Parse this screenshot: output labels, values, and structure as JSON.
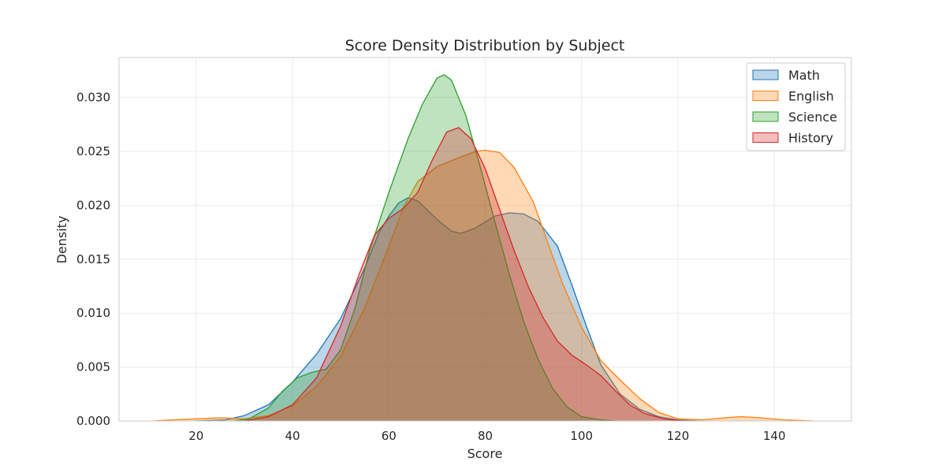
{
  "chart_data": {
    "type": "area",
    "title": "Score Density Distribution by Subject",
    "xlabel": "Score",
    "ylabel": "Density",
    "xlim": [
      4,
      156
    ],
    "ylim": [
      0,
      0.0337
    ],
    "x_ticks": [
      20,
      40,
      60,
      80,
      100,
      120,
      140
    ],
    "x_tick_labels": [
      "20",
      "40",
      "60",
      "80",
      "100",
      "120",
      "140"
    ],
    "y_ticks": [
      0,
      0.005,
      0.01,
      0.015,
      0.02,
      0.025,
      0.03
    ],
    "y_tick_labels": [
      "0.000",
      "0.005",
      "0.010",
      "0.015",
      "0.020",
      "0.025",
      "0.030"
    ],
    "grid": true,
    "legend_position": "top-right",
    "series": [
      {
        "name": "Math",
        "color": "#1f77b4",
        "points": [
          [
            20,
            0
          ],
          [
            26,
            0.0001
          ],
          [
            30,
            0.0005
          ],
          [
            35,
            0.0015
          ],
          [
            40,
            0.0036
          ],
          [
            45,
            0.0062
          ],
          [
            50,
            0.0095
          ],
          [
            55,
            0.0142
          ],
          [
            58,
            0.0175
          ],
          [
            60,
            0.019
          ],
          [
            62,
            0.0202
          ],
          [
            64,
            0.0207
          ],
          [
            66,
            0.0204
          ],
          [
            70,
            0.0187
          ],
          [
            73,
            0.0176
          ],
          [
            75,
            0.0174
          ],
          [
            78,
            0.0179
          ],
          [
            82,
            0.019
          ],
          [
            85,
            0.0193
          ],
          [
            88,
            0.0192
          ],
          [
            91,
            0.0185
          ],
          [
            95,
            0.0162
          ],
          [
            98,
            0.0126
          ],
          [
            101,
            0.0088
          ],
          [
            104,
            0.0052
          ],
          [
            108,
            0.0025
          ],
          [
            112,
            0.0011
          ],
          [
            116,
            0.0004
          ],
          [
            120,
            0.0001
          ],
          [
            124,
            0
          ]
        ]
      },
      {
        "name": "English",
        "color": "#ff7f0e",
        "points": [
          [
            11,
            0
          ],
          [
            15,
            0.0001
          ],
          [
            20,
            0.0002
          ],
          [
            25,
            0.0003
          ],
          [
            30,
            0.0002
          ],
          [
            35,
            0.0005
          ],
          [
            40,
            0.0014
          ],
          [
            45,
            0.0032
          ],
          [
            50,
            0.006
          ],
          [
            55,
            0.0105
          ],
          [
            60,
            0.0162
          ],
          [
            63,
            0.0198
          ],
          [
            66,
            0.0222
          ],
          [
            70,
            0.0236
          ],
          [
            75,
            0.0245
          ],
          [
            78,
            0.025
          ],
          [
            80,
            0.0251
          ],
          [
            83,
            0.0249
          ],
          [
            86,
            0.0235
          ],
          [
            90,
            0.0203
          ],
          [
            93,
            0.0165
          ],
          [
            96,
            0.0128
          ],
          [
            100,
            0.0087
          ],
          [
            104,
            0.0056
          ],
          [
            108,
            0.0038
          ],
          [
            112,
            0.0021
          ],
          [
            116,
            0.0008
          ],
          [
            120,
            0.0002
          ],
          [
            125,
            0.0001
          ],
          [
            130,
            0.0003
          ],
          [
            133,
            0.0004
          ],
          [
            137,
            0.0003
          ],
          [
            142,
            0.0001
          ],
          [
            148,
            0
          ]
        ]
      },
      {
        "name": "Science",
        "color": "#2ca02c",
        "points": [
          [
            28,
            0
          ],
          [
            31,
            0.0002
          ],
          [
            35,
            0.0012
          ],
          [
            38,
            0.0028
          ],
          [
            41,
            0.004
          ],
          [
            44,
            0.0045
          ],
          [
            47,
            0.0048
          ],
          [
            50,
            0.0066
          ],
          [
            53,
            0.0105
          ],
          [
            56,
            0.0158
          ],
          [
            60,
            0.0212
          ],
          [
            64,
            0.0262
          ],
          [
            67,
            0.0294
          ],
          [
            70,
            0.0318
          ],
          [
            71.5,
            0.0321
          ],
          [
            73,
            0.0316
          ],
          [
            76,
            0.0283
          ],
          [
            79,
            0.0235
          ],
          [
            82,
            0.0185
          ],
          [
            85,
            0.0136
          ],
          [
            88,
            0.0092
          ],
          [
            91,
            0.0057
          ],
          [
            94,
            0.003
          ],
          [
            97,
            0.0013
          ],
          [
            100,
            0.0004
          ],
          [
            104,
            0.0001
          ],
          [
            107,
            0
          ]
        ]
      },
      {
        "name": "History",
        "color": "#d62728",
        "points": [
          [
            30,
            0
          ],
          [
            35,
            0.0004
          ],
          [
            40,
            0.0015
          ],
          [
            45,
            0.004
          ],
          [
            50,
            0.0088
          ],
          [
            54,
            0.0138
          ],
          [
            57,
            0.0172
          ],
          [
            60,
            0.0188
          ],
          [
            63,
            0.0197
          ],
          [
            66,
            0.0212
          ],
          [
            69,
            0.0242
          ],
          [
            72,
            0.0268
          ],
          [
            74.5,
            0.0272
          ],
          [
            77,
            0.0262
          ],
          [
            80,
            0.0234
          ],
          [
            83,
            0.0196
          ],
          [
            86,
            0.0158
          ],
          [
            89,
            0.0124
          ],
          [
            92,
            0.0096
          ],
          [
            95,
            0.0074
          ],
          [
            98,
            0.0061
          ],
          [
            101,
            0.0052
          ],
          [
            104,
            0.0042
          ],
          [
            107,
            0.0028
          ],
          [
            110,
            0.0015
          ],
          [
            113,
            0.0007
          ],
          [
            117,
            0.0002
          ],
          [
            121,
            0
          ]
        ]
      }
    ]
  }
}
